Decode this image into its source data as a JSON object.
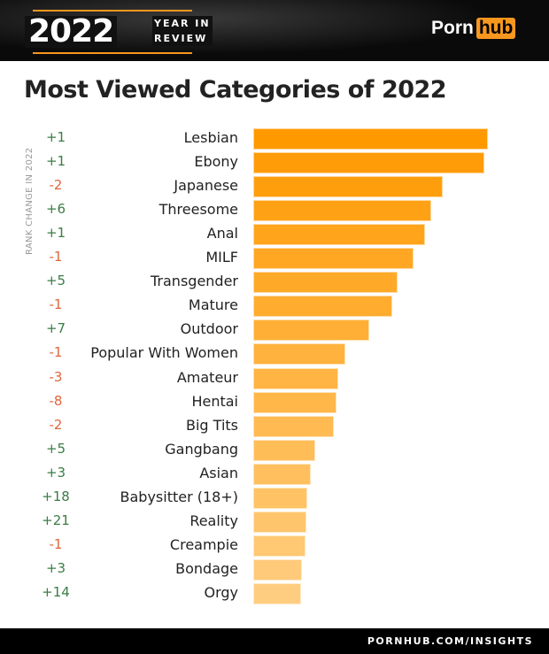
{
  "header": {
    "year": "2022",
    "subtitle_line1": "YEAR IN",
    "subtitle_line2": "REVIEW",
    "logo_left": "Porn",
    "logo_right": "hub"
  },
  "footer": {
    "link": "PORNHUB.COM/INSIGHTS"
  },
  "colors": {
    "accent": "#f7971e",
    "bar_top": "#ff9900",
    "bar_bottom": "#ffcd80",
    "positive": "#3a7d44",
    "negative": "#e0643c"
  },
  "chart_data": {
    "type": "bar",
    "orientation": "horizontal",
    "title": "Most Viewed Categories of 2022",
    "rank_change_label": "RANK CHANGE IN 2022",
    "categories": [
      "Lesbian",
      "Ebony",
      "Japanese",
      "Threesome",
      "Anal",
      "MILF",
      "Transgender",
      "Mature",
      "Outdoor",
      "Popular With Women",
      "Amateur",
      "Hentai",
      "Big Tits",
      "Gangbang",
      "Asian",
      "Babysitter (18+)",
      "Reality",
      "Creampie",
      "Bondage",
      "Orgy"
    ],
    "rank_changes": [
      "+1",
      "+1",
      "-2",
      "+6",
      "+1",
      "-1",
      "+5",
      "-1",
      "+7",
      "-1",
      "-3",
      "-8",
      "-2",
      "+5",
      "+3",
      "+18",
      "+21",
      "-1",
      "+3",
      "+14"
    ],
    "values": [
      100,
      98.5,
      80.8,
      75.8,
      73.2,
      68.3,
      61.5,
      59.2,
      49.4,
      39.2,
      36.2,
      35.5,
      34.3,
      26.4,
      24.5,
      23,
      22.6,
      22.3,
      20.8,
      20.4
    ],
    "value_note_units": "relative (no axis shown)",
    "xaxis_shown": false,
    "grid": false
  }
}
